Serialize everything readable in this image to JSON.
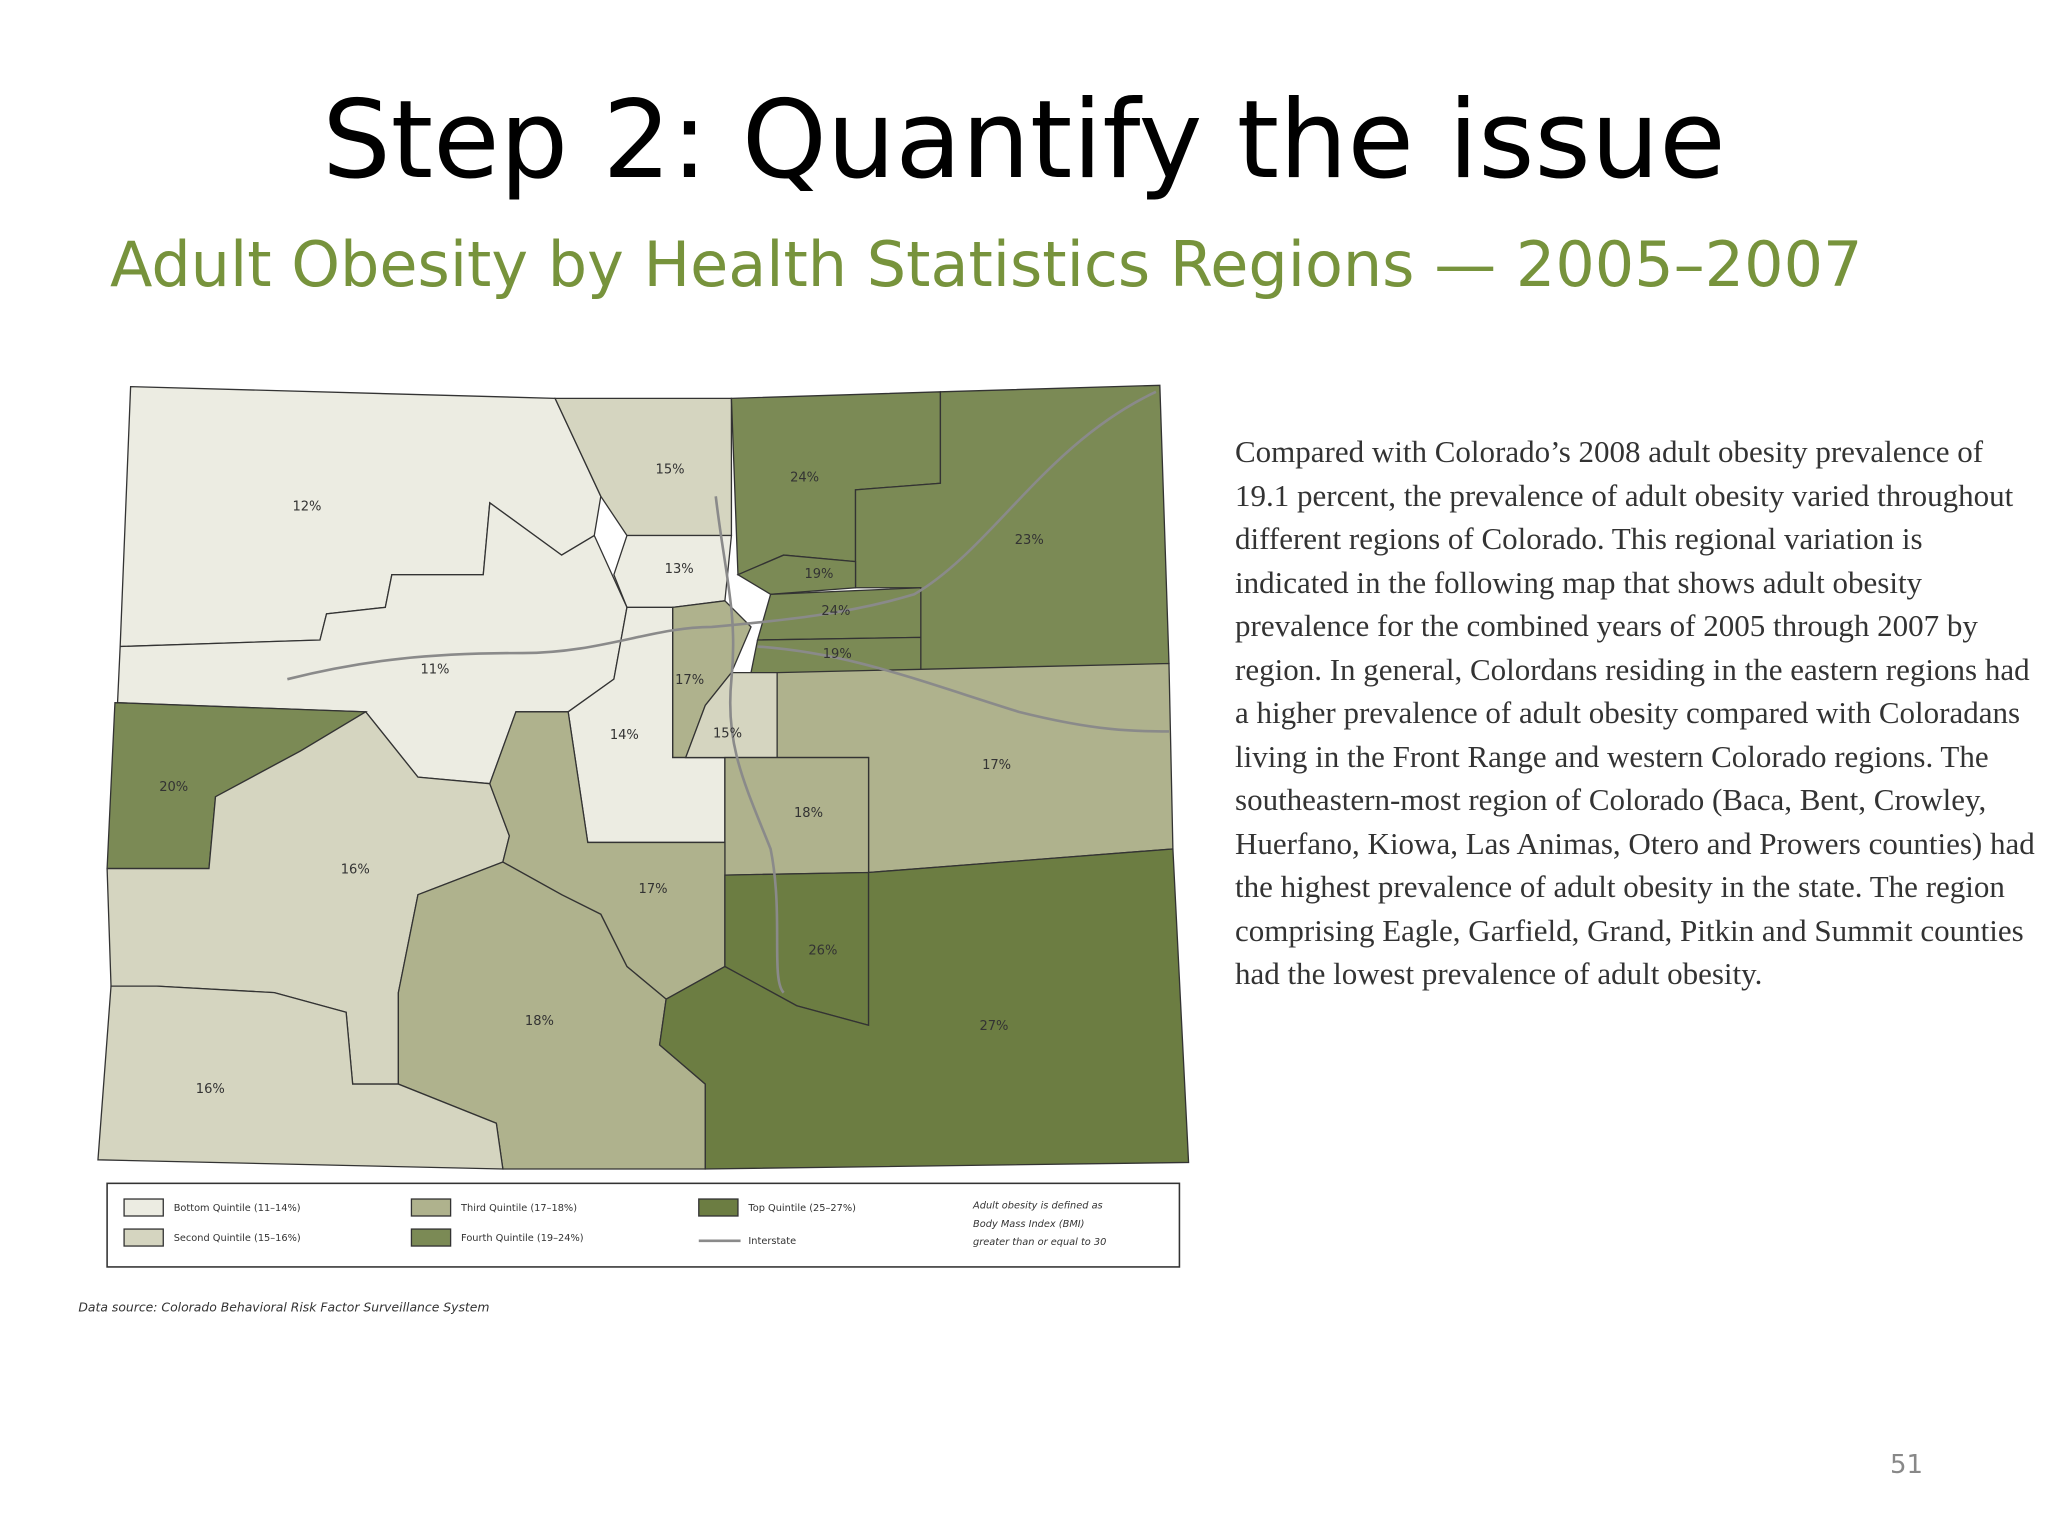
{
  "header": {
    "title": "Step 2: Quantify the issue",
    "subtitle": "Adult Obesity by Health Statistics Regions — 2005–2007"
  },
  "map": {
    "regions": [
      {
        "label": "12%",
        "color": "#ecece2"
      },
      {
        "label": "15%",
        "color": "#d5d5c0"
      },
      {
        "label": "24%",
        "color": "#7b8a55"
      },
      {
        "label": "23%",
        "color": "#7b8a55"
      },
      {
        "label": "13%",
        "color": "#ecece2"
      },
      {
        "label": "19%",
        "color": "#7b8a55"
      },
      {
        "label": "24%",
        "color": "#7b8a55"
      },
      {
        "label": "19%",
        "color": "#7b8a55"
      },
      {
        "label": "11%",
        "color": "#ecece2"
      },
      {
        "label": "17%",
        "color": "#afb28d"
      },
      {
        "label": "14%",
        "color": "#ecece2"
      },
      {
        "label": "15%",
        "color": "#d5d5c0"
      },
      {
        "label": "17%",
        "color": "#afb28d"
      },
      {
        "label": "20%",
        "color": "#7b8a55"
      },
      {
        "label": "18%",
        "color": "#afb28d"
      },
      {
        "label": "16%",
        "color": "#d5d5c0"
      },
      {
        "label": "17%",
        "color": "#afb28d"
      },
      {
        "label": "26%",
        "color": "#6c7d42"
      },
      {
        "label": "18%",
        "color": "#afb28d"
      },
      {
        "label": "27%",
        "color": "#6c7d42"
      },
      {
        "label": "16%",
        "color": "#d5d5c0"
      }
    ],
    "legend": {
      "items": [
        {
          "label": "Bottom Quintile (11–14%)",
          "color": "#ecece2"
        },
        {
          "label": "Second Quintile (15–16%)",
          "color": "#d5d5c0"
        },
        {
          "label": "Third Quintile (17–18%)",
          "color": "#afb28d"
        },
        {
          "label": "Fourth Quintile (19–24%)",
          "color": "#7b8a55"
        },
        {
          "label": "Top Quintile (25–27%)",
          "color": "#6c7d42"
        }
      ],
      "interstate": "Interstate",
      "note": [
        "Adult obesity is defined as",
        "Body Mass Index (BMI)",
        "greater than or equal to 30"
      ]
    },
    "source": "Data source: Colorado Behavioral Risk Factor Surveillance System"
  },
  "body": {
    "text": "Compared with Colorado’s 2008 adult obesity prevalence of 19.1 percent, the prevalence of adult obesity varied throughout different regions of Colorado. This regional variation is indicated in the following map that shows adult obesity prevalence for the combined years of 2005 through 2007 by region. In general, Colordans residing in the eastern regions had a higher prevalence of adult obesity compared with Coloradans living in the Front Range and western Colorado regions. The southeastern-most region of Colorado (Baca, Bent, Crowley, Huerfano, Kiowa, Las Animas, Otero and Prowers counties) had the highest prevalence of adult obesity in the state. The region comprising Eagle, Garfield, Grand, Pitkin and Summit counties had the lowest prevalence of adult obesity."
  },
  "footer": {
    "page_number": "51"
  }
}
